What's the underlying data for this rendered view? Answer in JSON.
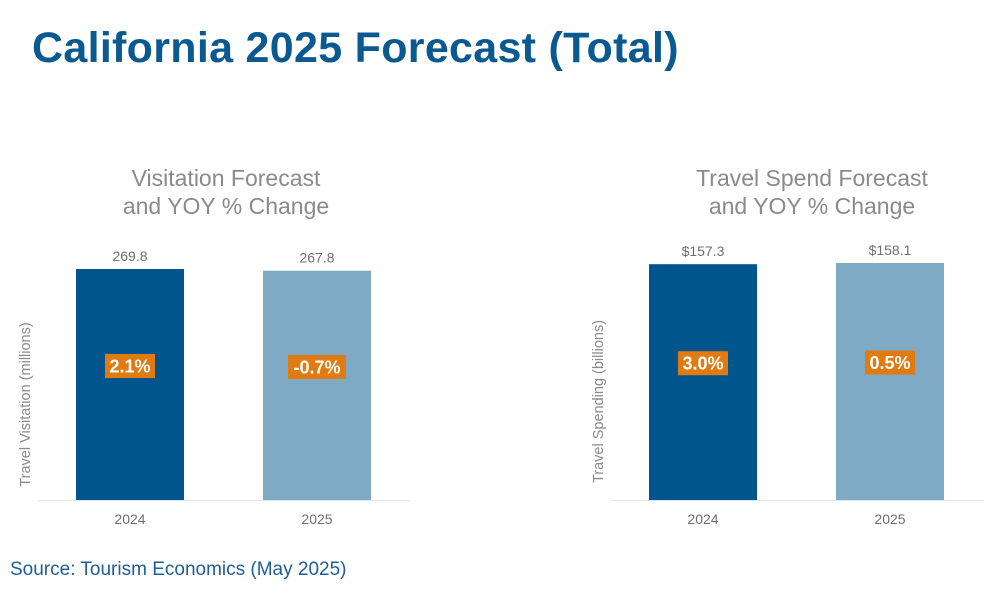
{
  "page": {
    "title": "California 2025 Forecast (Total)",
    "source": "Source: Tourism Economics (May 2025)"
  },
  "colors": {
    "title": "#0a5a91",
    "bar_dark": "#00558c",
    "bar_light": "#7faac5",
    "badge": "#e07b12",
    "muted_text": "#8a8a8a",
    "source": "#1f5d96"
  },
  "chart_data": [
    {
      "type": "bar",
      "title_line1": "Visitation Forecast",
      "title_line2": "and YOY % Change",
      "ylabel": "Travel Visitation (millions)",
      "categories": [
        "2024",
        "2025"
      ],
      "values": [
        269.8,
        267.8
      ],
      "value_labels": [
        "269.8",
        "267.8"
      ],
      "yoy_labels": [
        "2.1%",
        "-0.7%"
      ],
      "yoy_values": [
        2.1,
        -0.7
      ],
      "ylim": [
        0,
        269.8
      ]
    },
    {
      "type": "bar",
      "title_line1": "Travel Spend Forecast",
      "title_line2": "and YOY % Change",
      "ylabel": "Travel Spending (billions)",
      "categories": [
        "2024",
        "2025"
      ],
      "values": [
        157.3,
        158.1
      ],
      "value_labels": [
        "$157.3",
        "$158.1"
      ],
      "yoy_labels": [
        "3.0%",
        "0.5%"
      ],
      "yoy_values": [
        3.0,
        0.5
      ],
      "ylim": [
        0,
        158.1
      ]
    }
  ]
}
